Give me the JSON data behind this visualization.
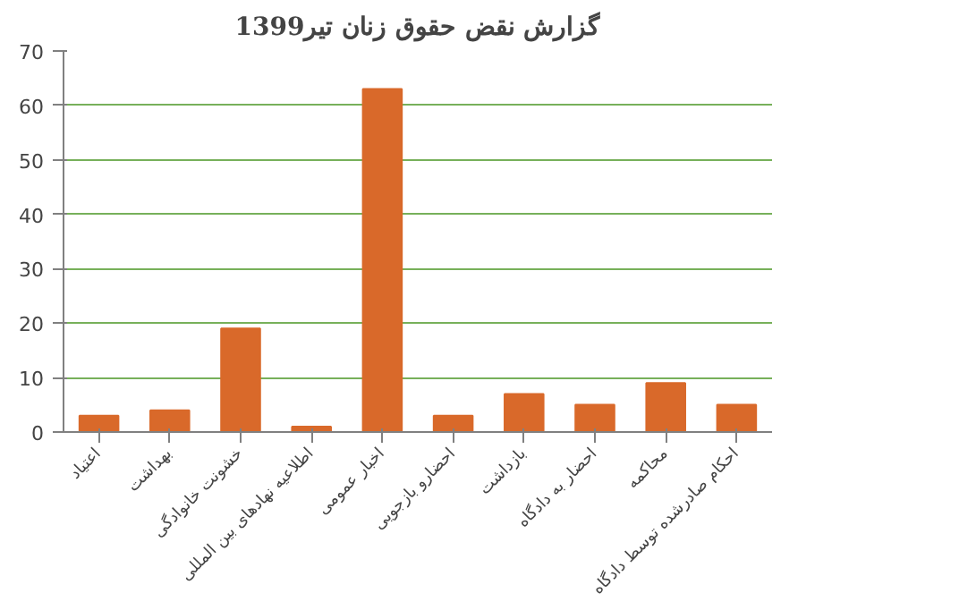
{
  "chart_data": {
    "type": "bar",
    "title": "گزارش نقض حقوق زنان تیر1399",
    "categories": [
      "اعتیاد",
      "بهداشت",
      "خشونت خانوادگی",
      "اطلاعیه نهادهای بین المللی",
      "اخبار عمومی",
      "احضارو بازجویی",
      "بازداشت",
      "احضار به دادگاه",
      "محاکمه",
      "احکام صادرشده توسط دادگاه"
    ],
    "values": [
      3,
      4,
      19,
      1,
      63,
      3,
      7,
      5,
      9,
      5
    ],
    "color": "#d9692a",
    "ylim": [
      0,
      70
    ],
    "yticks": [
      0,
      10,
      20,
      30,
      40,
      50,
      60,
      70
    ],
    "grid": "y"
  }
}
